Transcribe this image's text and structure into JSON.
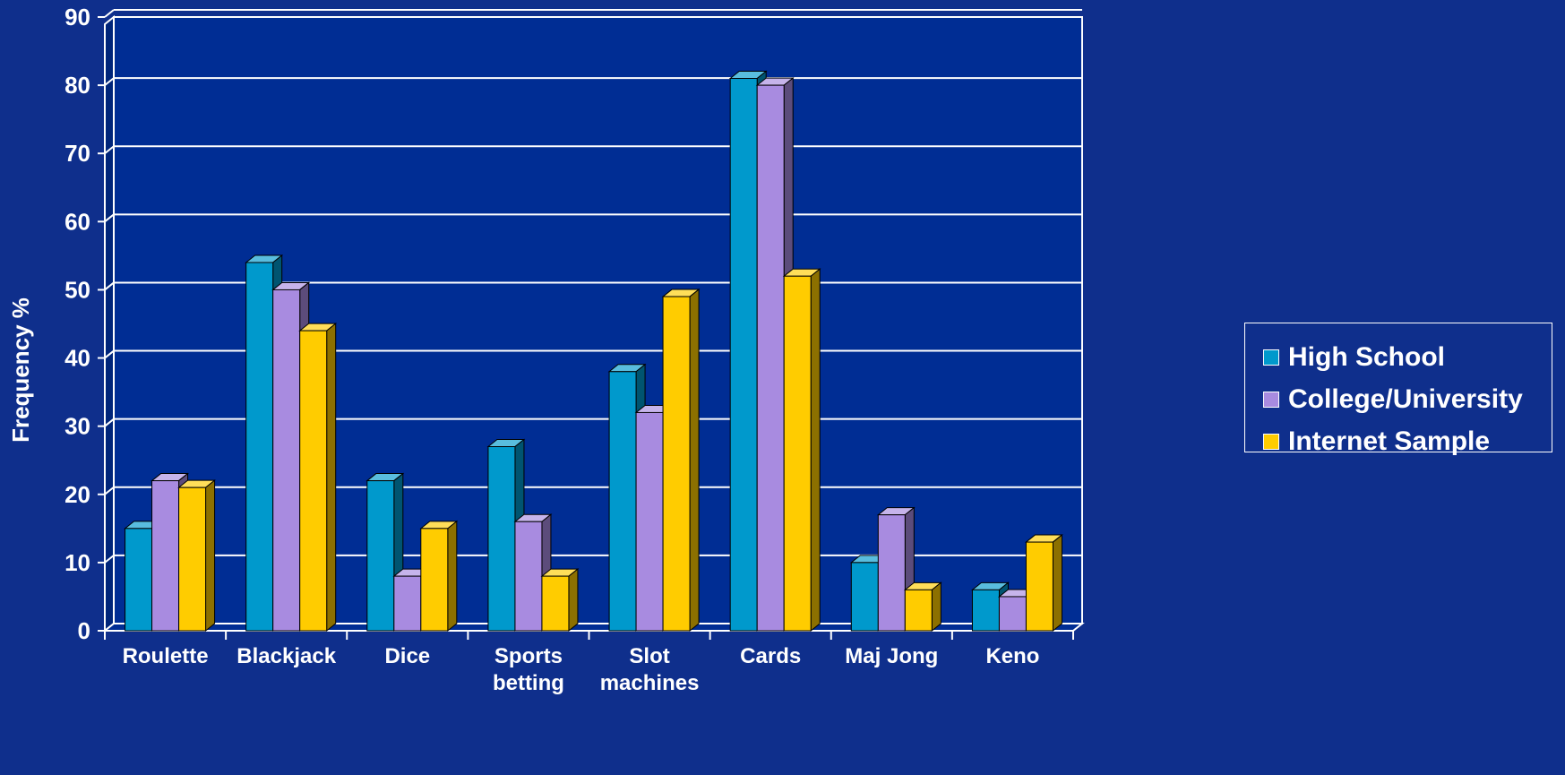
{
  "chart_data": {
    "type": "bar",
    "categories": [
      "Roulette",
      "Blackjack",
      "Dice",
      "Sports betting",
      "Slot machines",
      "Cards",
      "Maj Jong",
      "Keno"
    ],
    "category_lines": [
      [
        "Roulette"
      ],
      [
        "Blackjack"
      ],
      [
        "Dice"
      ],
      [
        "Sports",
        "betting"
      ],
      [
        "Slot",
        "machines"
      ],
      [
        "Cards"
      ],
      [
        "Maj Jong"
      ],
      [
        "Keno"
      ]
    ],
    "series": [
      {
        "name": "High School",
        "color": "#0099cc",
        "values": [
          15,
          54,
          22,
          27,
          38,
          81,
          10,
          6
        ]
      },
      {
        "name": "College/University",
        "color": "#a88be0",
        "values": [
          22,
          50,
          8,
          16,
          32,
          80,
          17,
          5
        ]
      },
      {
        "name": "Internet Sample",
        "color": "#ffcc00",
        "values": [
          21,
          44,
          15,
          8,
          49,
          52,
          6,
          13
        ]
      }
    ],
    "ylabel": "Frequency %",
    "xlabel": "",
    "ylim": [
      0,
      90
    ],
    "yticks": [
      0,
      10,
      20,
      30,
      40,
      50,
      60,
      70,
      80,
      90
    ],
    "grid": true,
    "legend_position": "right",
    "style": "3d-clustered"
  }
}
